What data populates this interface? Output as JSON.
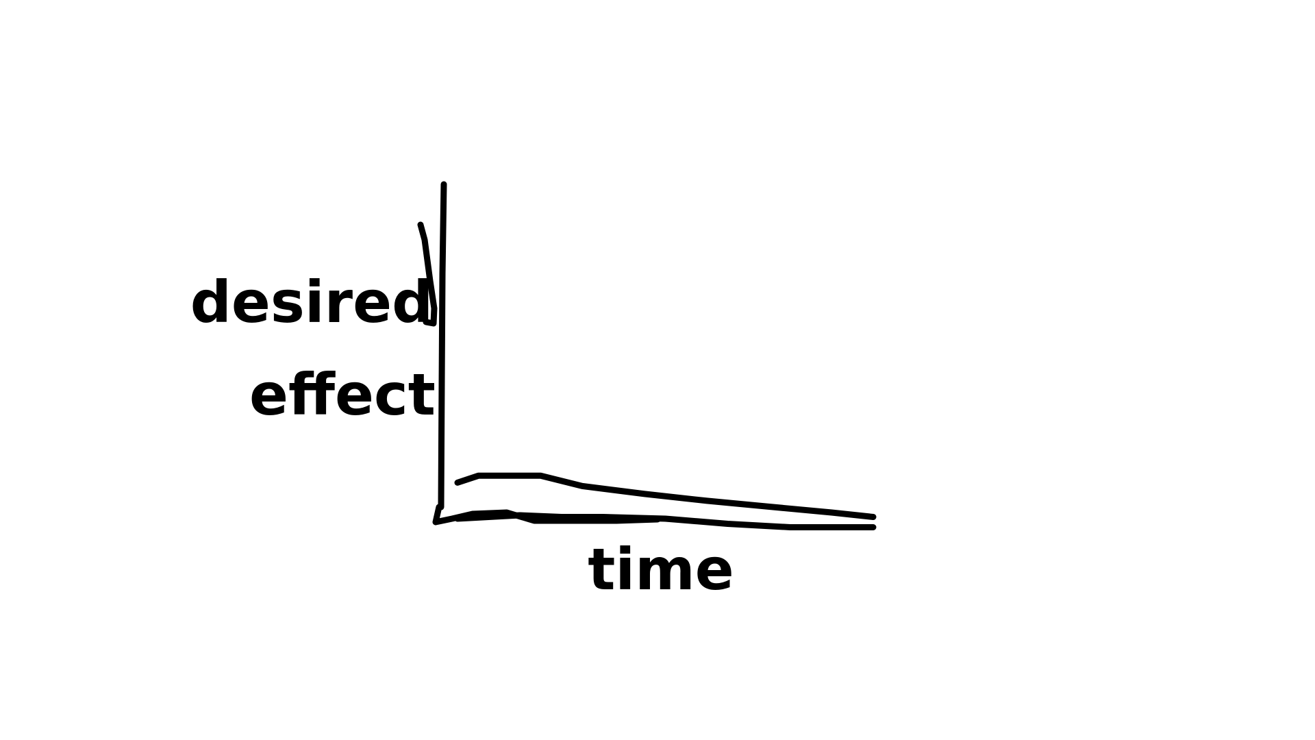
{
  "chart_data": {
    "type": "line",
    "title": "",
    "xlabel": "time",
    "ylabel": "desired effect",
    "grid": false,
    "legend": "none",
    "x_ticks": false,
    "y_ticks": false,
    "xlim": [
      0,
      10
    ],
    "ylim": [
      0,
      10
    ],
    "series": [
      {
        "x": [
          0.0,
          0.5,
          2.0,
          3.0,
          4.5,
          6.0,
          7.5,
          9.0,
          10.0
        ],
        "y": [
          1.05,
          1.25,
          1.25,
          0.95,
          0.72,
          0.52,
          0.35,
          0.18,
          0.05
        ]
      },
      {
        "x": [
          0.0,
          1.5,
          2.5,
          3.5,
          5.0,
          6.5,
          8.0,
          9.2,
          10.0
        ],
        "y": [
          0.0,
          0.1,
          0.05,
          0.05,
          0.0,
          -0.15,
          -0.25,
          -0.25,
          -0.25
        ]
      }
    ],
    "stroke_color": "#000000"
  }
}
